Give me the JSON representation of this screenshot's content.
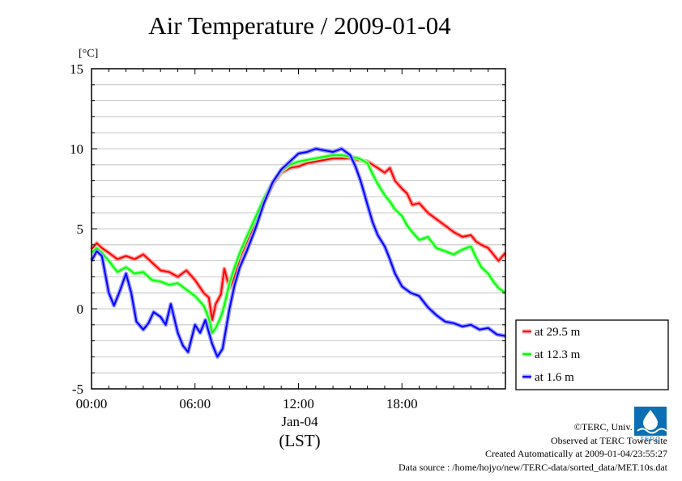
{
  "title": "Air Temperature / 2009-01-04",
  "credits": {
    "line1": "©TERC, Univ. Tsukuba",
    "line2": "Observed at TERC Tower site",
    "line3": "Created Automatically at 2009-01-04/23:55:27",
    "line4": "Data source : /home/hojyo/new/TERC-data/sorted_data/MET.10s.dat"
  },
  "logo_text": "TERC",
  "chart_data": {
    "type": "line",
    "title": "Air Temperature / 2009-01-04",
    "ylabel": "[°C]",
    "xlabel": "(LST)",
    "date_label": "Jan-04",
    "xlim": [
      0,
      24
    ],
    "ylim": [
      -5,
      15
    ],
    "x_ticks": [
      0,
      6,
      12,
      18
    ],
    "x_tick_labels": [
      "00:00",
      "06:00",
      "12:00",
      "18:00"
    ],
    "y_ticks": [
      -5,
      0,
      5,
      10,
      15
    ],
    "y_tick_labels": [
      "-5",
      "0",
      "5",
      "10",
      "15"
    ],
    "grid": true,
    "legend_position": "bottom-right",
    "series": [
      {
        "name": "at 29.5 m",
        "color": "#ff0000",
        "x": [
          0,
          0.3,
          0.6,
          1,
          1.5,
          2,
          2.5,
          3,
          3.5,
          4,
          4.5,
          5,
          5.5,
          6,
          6.5,
          6.8,
          7,
          7.2,
          7.5,
          7.7,
          8,
          8.3,
          8.6,
          9,
          9.5,
          10,
          10.5,
          11,
          11.5,
          12,
          12.5,
          13,
          13.5,
          14,
          14.5,
          15,
          15.5,
          16,
          16.3,
          16.6,
          17,
          17.3,
          17.6,
          18,
          18.3,
          18.6,
          19,
          19.5,
          20,
          20.5,
          21,
          21.5,
          22,
          22.3,
          22.6,
          23,
          23.3,
          23.6,
          24
        ],
        "values": [
          3.7,
          4.1,
          3.8,
          3.5,
          3.1,
          3.3,
          3.1,
          3.4,
          2.9,
          2.4,
          2.3,
          2.0,
          2.4,
          1.8,
          1.0,
          0.7,
          -0.7,
          0.3,
          0.9,
          2.5,
          1.3,
          2.0,
          3.2,
          4.2,
          5.4,
          6.6,
          7.8,
          8.5,
          8.8,
          8.9,
          9.1,
          9.2,
          9.3,
          9.4,
          9.4,
          9.4,
          9.3,
          9.2,
          9.0,
          8.8,
          8.5,
          8.8,
          8.0,
          7.5,
          7.2,
          6.5,
          6.6,
          6.0,
          5.6,
          5.2,
          4.8,
          4.5,
          4.6,
          4.2,
          4.0,
          3.8,
          3.4,
          3.0,
          3.5
        ]
      },
      {
        "name": "at 12.3 m",
        "color": "#00ff00",
        "x": [
          0,
          0.3,
          0.6,
          1,
          1.5,
          2,
          2.5,
          3,
          3.5,
          4,
          4.5,
          5,
          5.5,
          6,
          6.5,
          6.8,
          7,
          7.2,
          7.5,
          7.7,
          8,
          8.3,
          8.6,
          9,
          9.5,
          10,
          10.5,
          11,
          11.5,
          12,
          12.5,
          13,
          13.5,
          14,
          14.5,
          15,
          15.5,
          16,
          16.3,
          16.6,
          17,
          17.3,
          17.6,
          18,
          18.3,
          18.6,
          19,
          19.5,
          20,
          20.5,
          21,
          21.5,
          22,
          22.3,
          22.6,
          23,
          23.3,
          23.6,
          24
        ],
        "values": [
          3.5,
          3.8,
          3.5,
          3.0,
          2.3,
          2.6,
          2.2,
          2.3,
          1.8,
          1.7,
          1.5,
          1.6,
          1.2,
          0.8,
          0.2,
          -0.6,
          -1.5,
          -1.2,
          -0.5,
          0.2,
          1.6,
          2.6,
          3.5,
          4.5,
          5.7,
          6.9,
          7.9,
          8.6,
          9.0,
          9.2,
          9.3,
          9.4,
          9.5,
          9.6,
          9.6,
          9.5,
          9.4,
          9.1,
          8.4,
          7.8,
          7.1,
          6.7,
          6.2,
          5.8,
          5.2,
          4.8,
          4.3,
          4.5,
          3.8,
          3.6,
          3.4,
          3.7,
          3.9,
          3.2,
          2.6,
          2.2,
          1.7,
          1.3,
          1.0
        ]
      },
      {
        "name": "at 1.6 m",
        "color": "#0000ff",
        "x": [
          0,
          0.3,
          0.6,
          1,
          1.3,
          1.6,
          2,
          2.3,
          2.6,
          3,
          3.3,
          3.6,
          4,
          4.3,
          4.6,
          5,
          5.3,
          5.6,
          6,
          6.3,
          6.6,
          7,
          7.3,
          7.6,
          8,
          8.3,
          8.6,
          9,
          9.5,
          10,
          10.5,
          11,
          11.5,
          12,
          12.5,
          13,
          13.5,
          14,
          14.5,
          15,
          15.3,
          15.6,
          16,
          16.3,
          16.6,
          17,
          17.3,
          17.6,
          18,
          18.5,
          19,
          19.5,
          20,
          20.5,
          21,
          21.5,
          22,
          22.5,
          23,
          23.5,
          24
        ],
        "values": [
          3.0,
          3.6,
          3.3,
          1.0,
          0.2,
          1.0,
          2.2,
          1.0,
          -0.8,
          -1.3,
          -0.9,
          -0.2,
          -0.5,
          -1.0,
          0.3,
          -1.5,
          -2.3,
          -2.7,
          -1.0,
          -1.5,
          -0.7,
          -2.2,
          -3.0,
          -2.5,
          0.0,
          1.5,
          2.6,
          3.6,
          5.0,
          6.6,
          7.9,
          8.7,
          9.2,
          9.7,
          9.8,
          10.0,
          9.9,
          9.8,
          10.0,
          9.6,
          8.9,
          8.0,
          6.5,
          5.4,
          4.6,
          3.9,
          3.1,
          2.2,
          1.4,
          1.0,
          0.8,
          0.1,
          -0.4,
          -0.8,
          -0.9,
          -1.1,
          -1.0,
          -1.3,
          -1.2,
          -1.6,
          -1.7
        ]
      }
    ]
  }
}
